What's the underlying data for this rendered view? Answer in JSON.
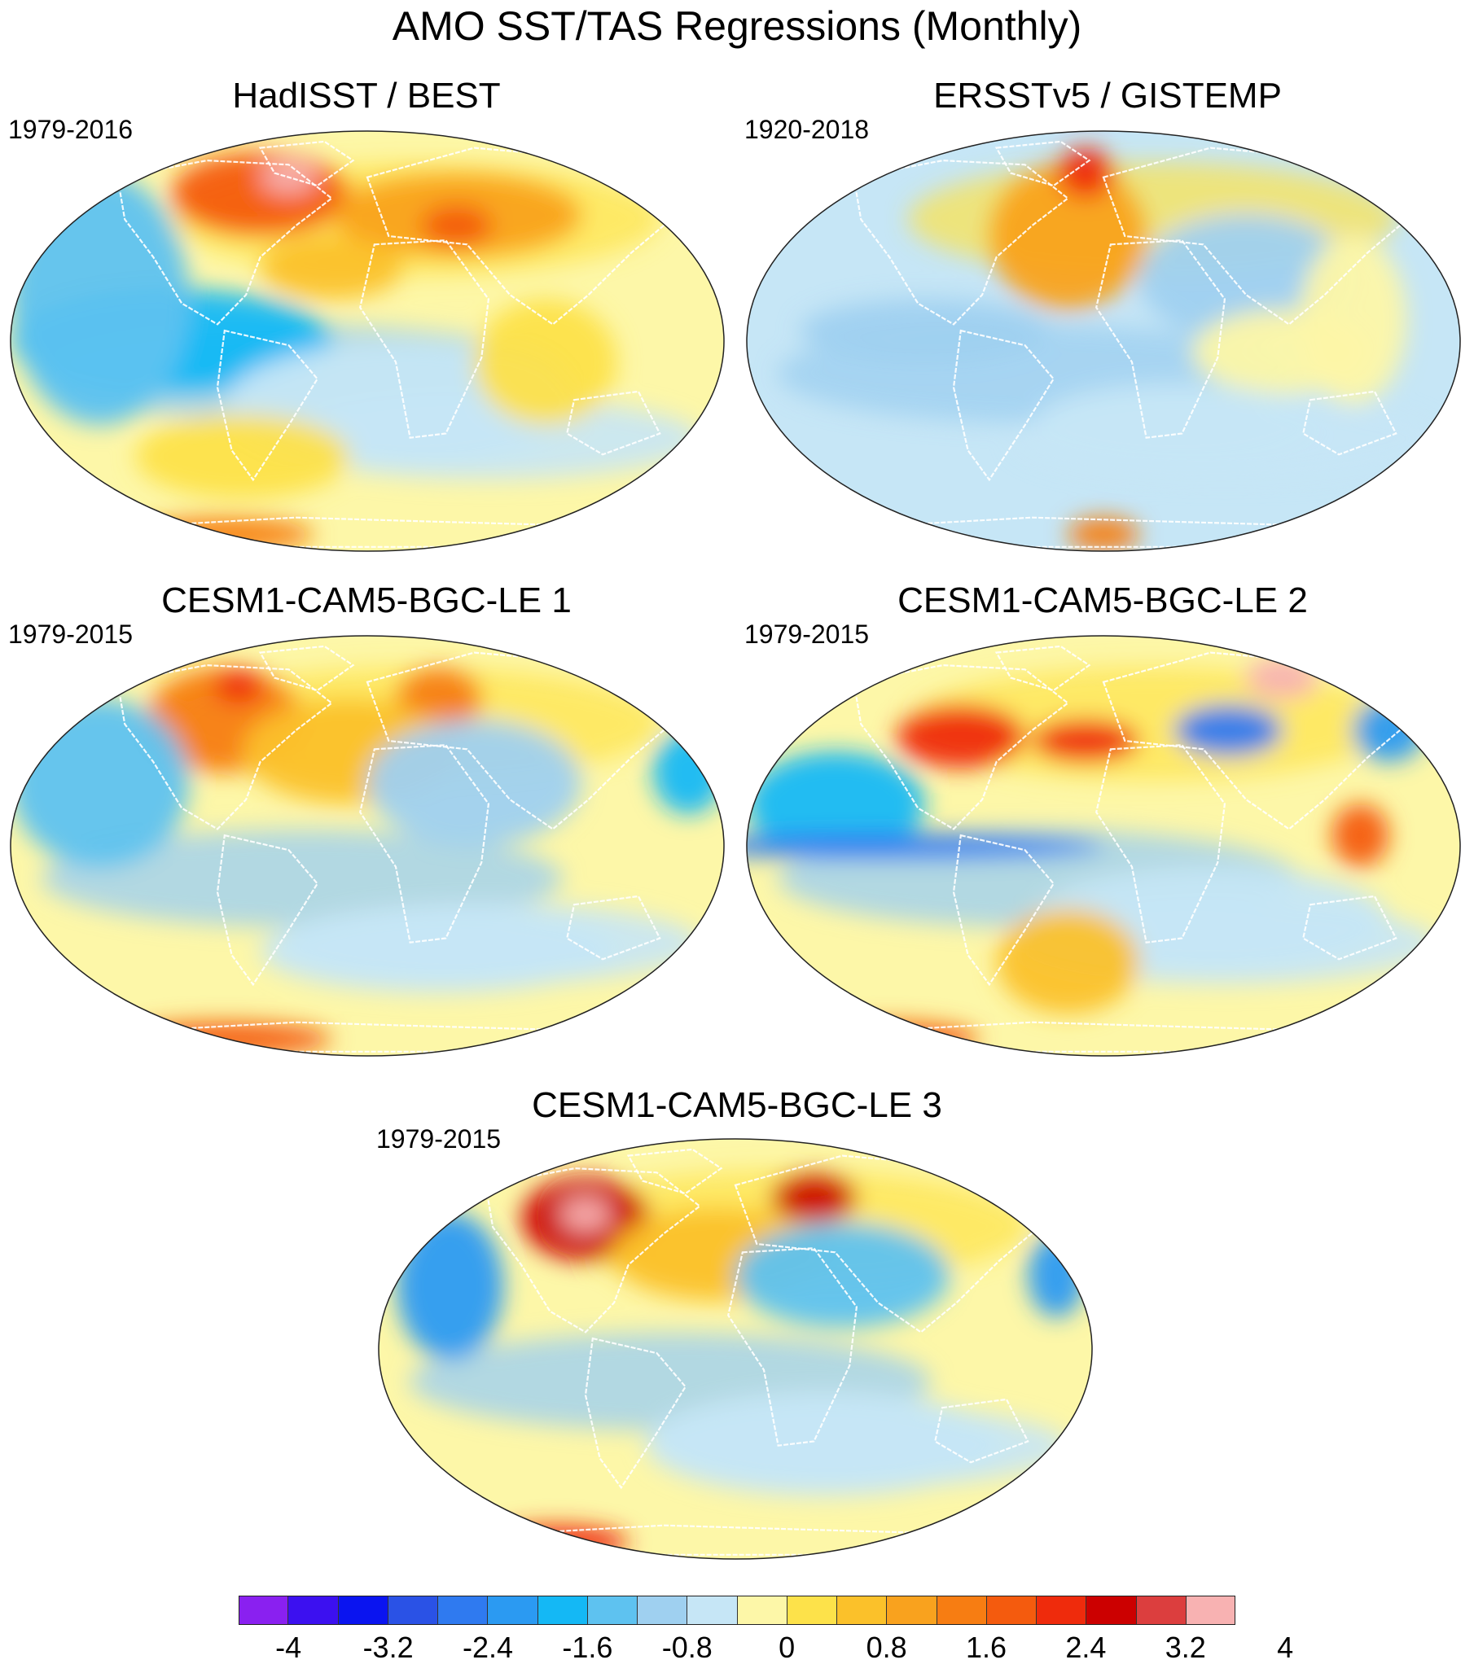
{
  "title": "AMO SST/TAS Regressions (Monthly)",
  "panels": [
    {
      "id": "hadisst-best",
      "title": "HadISST / BEST",
      "period": "1979-2016"
    },
    {
      "id": "ersstv5-gistemp",
      "title": "ERSSTv5 / GISTEMP",
      "period": "1920-2018"
    },
    {
      "id": "cesm-le-1",
      "title": "CESM1-CAM5-BGC-LE 1",
      "period": "1979-2015"
    },
    {
      "id": "cesm-le-2",
      "title": "CESM1-CAM5-BGC-LE 2",
      "period": "1979-2015"
    },
    {
      "id": "cesm-le-3",
      "title": "CESM1-CAM5-BGC-LE 3",
      "period": "1979-2015"
    }
  ],
  "colorbar": {
    "levels": [
      "-4",
      "-3.2",
      "-2.4",
      "-1.6",
      "-0.8",
      "0",
      "0.8",
      "1.6",
      "2.4",
      "3.2",
      "4"
    ],
    "colors": [
      "#8a20f0",
      "#3c10f0",
      "#0a14f0",
      "#2a52e6",
      "#2f7af0",
      "#2b9af2",
      "#14b8f5",
      "#5ec2f0",
      "#9fd0f0",
      "#c6e6f6",
      "#fdf7a8",
      "#fde24a",
      "#fbc12a",
      "#f9a21e",
      "#f77d12",
      "#f45b0e",
      "#ef2b0c",
      "#cc0000",
      "#dc3e3e",
      "#f8b2b2"
    ]
  },
  "land_outline_color": "#ffffff",
  "ocean_base_color": "#9fd0f0"
}
